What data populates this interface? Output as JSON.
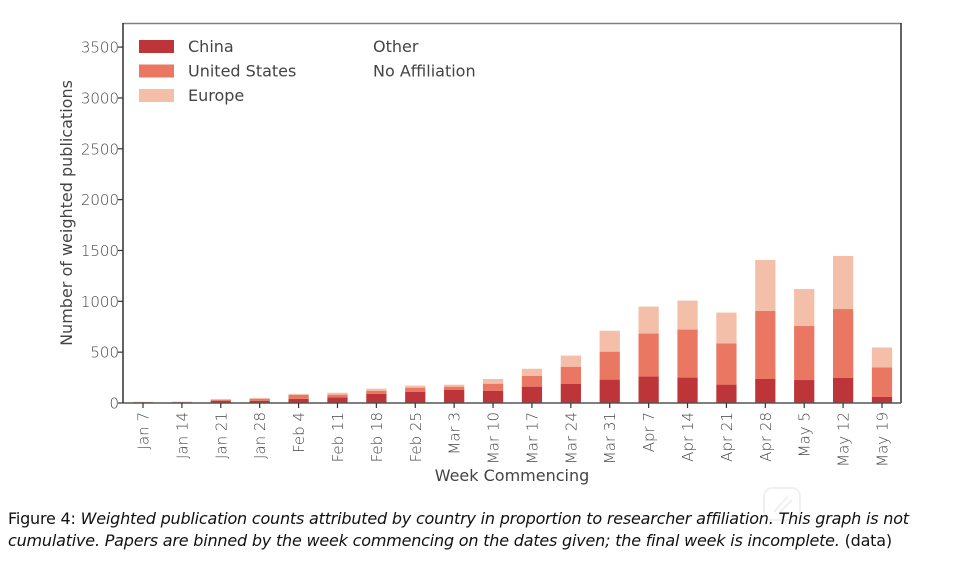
{
  "chart_data": {
    "type": "bar",
    "stacked": true,
    "title": "",
    "xlabel": "Week Commencing",
    "ylabel": "Number of weighted publications",
    "ylim": [
      0,
      3737
    ],
    "yticks": [
      0,
      500,
      1000,
      1500,
      2000,
      2500,
      3000,
      3500
    ],
    "grid": false,
    "legend_position": "top-left",
    "categories": [
      "Jan 7",
      "Jan 14",
      "Jan 21",
      "Jan 28",
      "Feb 4",
      "Feb 11",
      "Feb 18",
      "Feb 25",
      "Mar 3",
      "Mar 10",
      "Mar 17",
      "Mar 24",
      "Mar 31",
      "Apr 7",
      "Apr 14",
      "Apr 21",
      "Apr 28",
      "May 5",
      "May 12",
      "May 19"
    ],
    "series": [
      {
        "name": "China",
        "color": "#bd3539",
        "values": [
          4,
          6,
          20,
          20,
          40,
          56,
          91,
          111,
          131,
          121,
          161,
          190,
          230,
          260,
          250,
          181,
          236,
          226,
          246,
          59
        ]
      },
      {
        "name": "United States",
        "color": "#e97762",
        "values": [
          5,
          5,
          10,
          20,
          40,
          26,
          30,
          40,
          30,
          69,
          107,
          167,
          275,
          423,
          472,
          404,
          669,
          531,
          678,
          292
        ]
      },
      {
        "name": "Europe",
        "color": "#f3bfa8",
        "values": [
          3,
          2,
          10,
          10,
          10,
          19,
          20,
          20,
          19,
          46,
          69,
          109,
          206,
          265,
          285,
          304,
          501,
          364,
          522,
          195
        ]
      },
      {
        "name": "Other",
        "color": "#ffffff",
        "values": [
          0,
          0,
          0,
          0,
          0,
          0,
          0,
          0,
          0,
          0,
          0,
          0,
          0,
          0,
          0,
          0,
          0,
          0,
          0,
          0
        ]
      },
      {
        "name": "No Affiliation",
        "color": "#ffffff",
        "values": [
          0,
          0,
          0,
          0,
          0,
          0,
          0,
          0,
          0,
          0,
          0,
          0,
          0,
          0,
          0,
          0,
          0,
          0,
          0,
          0
        ]
      }
    ]
  },
  "caption": {
    "label": "Figure 4:",
    "text": "Weighted publication counts attributed by country in proportion to researcher affiliation. This graph is not cumulative. Papers are binned by the week commencing on the dates given; the final week is incomplete.",
    "link": "(data)"
  }
}
